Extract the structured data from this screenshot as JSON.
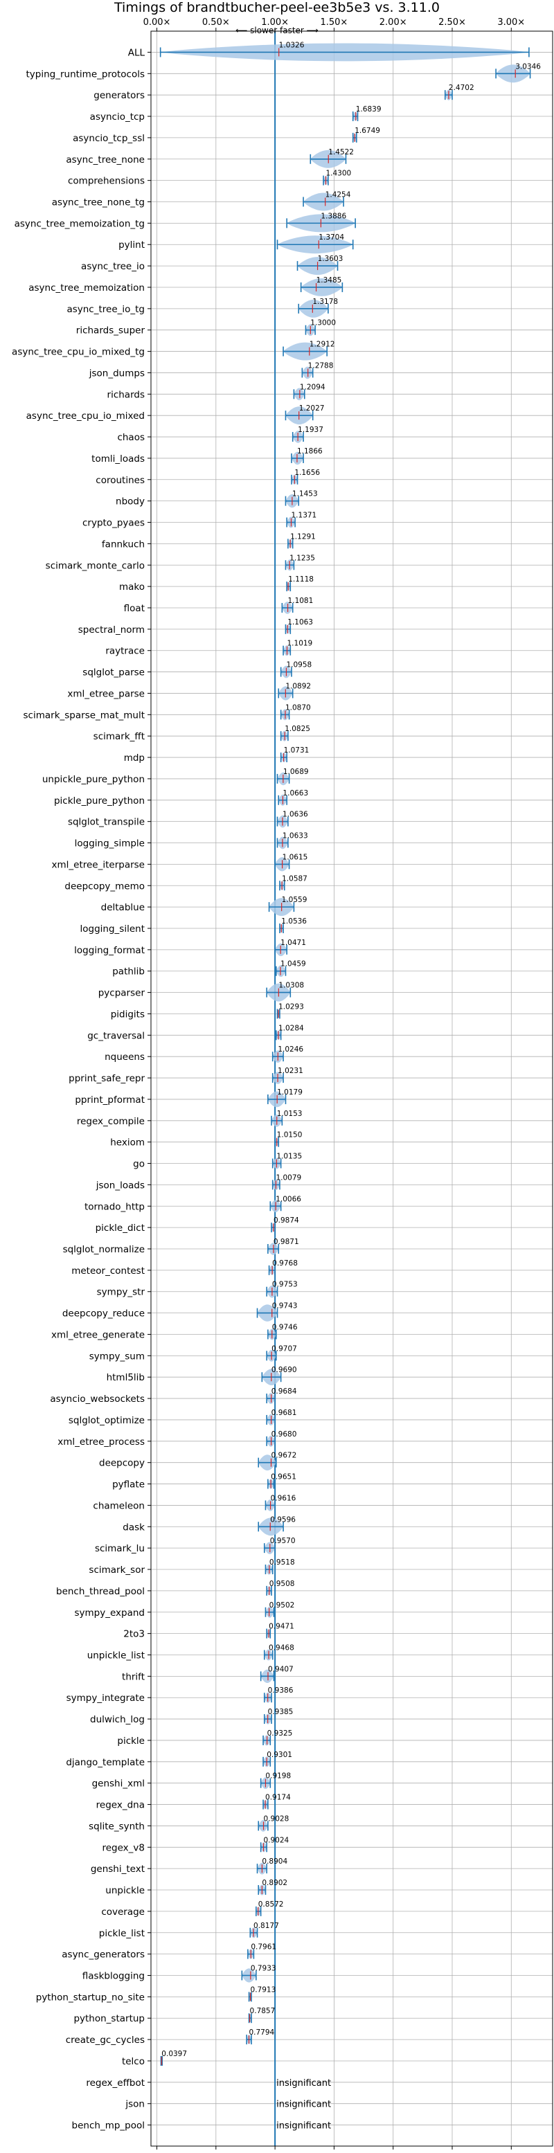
{
  "chart_data": {
    "type": "violin",
    "title": "Timings of brandtbucher-peel-ee3b5e3 vs. 3.11.0",
    "annotation": "⟵ slower    faster ⟶",
    "xlim": [
      -0.05,
      3.35
    ],
    "xticks": [
      "0.00×",
      "0.50×",
      "1.00×",
      "1.50×",
      "2.00×",
      "2.50×",
      "3.00×"
    ],
    "xtick_values": [
      0,
      0.5,
      1,
      1.5,
      2,
      2.5,
      3
    ],
    "reference_line": 1.0,
    "grid": true,
    "benchmarks": [
      {
        "name": "ALL",
        "label": "1.0326",
        "value": 1.0326,
        "min": 0.03,
        "max": 3.15
      },
      {
        "name": "typing_runtime_protocols",
        "label": "3.0346",
        "value": 3.0346,
        "min": 2.87,
        "max": 3.16
      },
      {
        "name": "generators",
        "label": "2.4702",
        "value": 2.4702,
        "min": 2.44,
        "max": 2.5
      },
      {
        "name": "asyncio_tcp",
        "label": "1.6839",
        "value": 1.6839,
        "min": 1.66,
        "max": 1.7
      },
      {
        "name": "asyncio_tcp_ssl",
        "label": "1.6749",
        "value": 1.6749,
        "min": 1.66,
        "max": 1.69
      },
      {
        "name": "async_tree_none",
        "label": "1.4522",
        "value": 1.4522,
        "min": 1.3,
        "max": 1.6
      },
      {
        "name": "comprehensions",
        "label": "1.4300",
        "value": 1.43,
        "min": 1.41,
        "max": 1.45
      },
      {
        "name": "async_tree_none_tg",
        "label": "1.4254",
        "value": 1.4254,
        "min": 1.24,
        "max": 1.58
      },
      {
        "name": "async_tree_memoization_tg",
        "label": "1.3886",
        "value": 1.3886,
        "min": 1.1,
        "max": 1.68
      },
      {
        "name": "pylint",
        "label": "1.3704",
        "value": 1.3704,
        "min": 1.02,
        "max": 1.66
      },
      {
        "name": "async_tree_io",
        "label": "1.3603",
        "value": 1.3603,
        "min": 1.19,
        "max": 1.53
      },
      {
        "name": "async_tree_memoization",
        "label": "1.3485",
        "value": 1.3485,
        "min": 1.22,
        "max": 1.57
      },
      {
        "name": "async_tree_io_tg",
        "label": "1.3178",
        "value": 1.3178,
        "min": 1.2,
        "max": 1.45
      },
      {
        "name": "richards_super",
        "label": "1.3000",
        "value": 1.3,
        "min": 1.26,
        "max": 1.34
      },
      {
        "name": "async_tree_cpu_io_mixed_tg",
        "label": "1.2912",
        "value": 1.2912,
        "min": 1.07,
        "max": 1.44
      },
      {
        "name": "json_dumps",
        "label": "1.2788",
        "value": 1.2788,
        "min": 1.23,
        "max": 1.32
      },
      {
        "name": "richards",
        "label": "1.2094",
        "value": 1.2094,
        "min": 1.16,
        "max": 1.25
      },
      {
        "name": "async_tree_cpu_io_mixed",
        "label": "1.2027",
        "value": 1.2027,
        "min": 1.09,
        "max": 1.32
      },
      {
        "name": "chaos",
        "label": "1.1937",
        "value": 1.1937,
        "min": 1.15,
        "max": 1.24
      },
      {
        "name": "tomli_loads",
        "label": "1.1866",
        "value": 1.1866,
        "min": 1.14,
        "max": 1.24
      },
      {
        "name": "coroutines",
        "label": "1.1656",
        "value": 1.1656,
        "min": 1.14,
        "max": 1.19
      },
      {
        "name": "nbody",
        "label": "1.1453",
        "value": 1.1453,
        "min": 1.09,
        "max": 1.2
      },
      {
        "name": "crypto_pyaes",
        "label": "1.1371",
        "value": 1.1371,
        "min": 1.1,
        "max": 1.17
      },
      {
        "name": "fannkuch",
        "label": "1.1291",
        "value": 1.1291,
        "min": 1.11,
        "max": 1.15
      },
      {
        "name": "scimark_monte_carlo",
        "label": "1.1235",
        "value": 1.1235,
        "min": 1.09,
        "max": 1.16
      },
      {
        "name": "mako",
        "label": "1.1118",
        "value": 1.1118,
        "min": 1.1,
        "max": 1.13
      },
      {
        "name": "float",
        "label": "1.1081",
        "value": 1.1081,
        "min": 1.06,
        "max": 1.15
      },
      {
        "name": "spectral_norm",
        "label": "1.1063",
        "value": 1.1063,
        "min": 1.09,
        "max": 1.13
      },
      {
        "name": "raytrace",
        "label": "1.1019",
        "value": 1.1019,
        "min": 1.07,
        "max": 1.13
      },
      {
        "name": "sqlglot_parse",
        "label": "1.0958",
        "value": 1.0958,
        "min": 1.05,
        "max": 1.14
      },
      {
        "name": "xml_etree_parse",
        "label": "1.0892",
        "value": 1.0892,
        "min": 1.03,
        "max": 1.15
      },
      {
        "name": "scimark_sparse_mat_mult",
        "label": "1.0870",
        "value": 1.087,
        "min": 1.05,
        "max": 1.12
      },
      {
        "name": "scimark_fft",
        "label": "1.0825",
        "value": 1.0825,
        "min": 1.05,
        "max": 1.11
      },
      {
        "name": "mdp",
        "label": "1.0731",
        "value": 1.0731,
        "min": 1.05,
        "max": 1.1
      },
      {
        "name": "unpickle_pure_python",
        "label": "1.0689",
        "value": 1.0689,
        "min": 1.02,
        "max": 1.12
      },
      {
        "name": "pickle_pure_python",
        "label": "1.0663",
        "value": 1.0663,
        "min": 1.03,
        "max": 1.1
      },
      {
        "name": "sqlglot_transpile",
        "label": "1.0636",
        "value": 1.0636,
        "min": 1.02,
        "max": 1.11
      },
      {
        "name": "logging_simple",
        "label": "1.0633",
        "value": 1.0633,
        "min": 1.02,
        "max": 1.11
      },
      {
        "name": "xml_etree_iterparse",
        "label": "1.0615",
        "value": 1.0615,
        "min": 1.0,
        "max": 1.12
      },
      {
        "name": "deepcopy_memo",
        "label": "1.0587",
        "value": 1.0587,
        "min": 1.04,
        "max": 1.08
      },
      {
        "name": "deltablue",
        "label": "1.0559",
        "value": 1.0559,
        "min": 0.95,
        "max": 1.16
      },
      {
        "name": "logging_silent",
        "label": "1.0536",
        "value": 1.0536,
        "min": 1.04,
        "max": 1.07
      },
      {
        "name": "logging_format",
        "label": "1.0471",
        "value": 1.0471,
        "min": 1.0,
        "max": 1.1
      },
      {
        "name": "pathlib",
        "label": "1.0459",
        "value": 1.0459,
        "min": 1.01,
        "max": 1.09
      },
      {
        "name": "pycparser",
        "label": "1.0308",
        "value": 1.0308,
        "min": 0.93,
        "max": 1.13
      },
      {
        "name": "pidigits",
        "label": "1.0293",
        "value": 1.0293,
        "min": 1.02,
        "max": 1.04
      },
      {
        "name": "gc_traversal",
        "label": "1.0284",
        "value": 1.0284,
        "min": 1.01,
        "max": 1.05
      },
      {
        "name": "nqueens",
        "label": "1.0246",
        "value": 1.0246,
        "min": 0.98,
        "max": 1.07
      },
      {
        "name": "pprint_safe_repr",
        "label": "1.0231",
        "value": 1.0231,
        "min": 0.98,
        "max": 1.07
      },
      {
        "name": "pprint_pformat",
        "label": "1.0179",
        "value": 1.0179,
        "min": 0.94,
        "max": 1.09
      },
      {
        "name": "regex_compile",
        "label": "1.0153",
        "value": 1.0153,
        "min": 0.97,
        "max": 1.06
      },
      {
        "name": "hexiom",
        "label": "1.0150",
        "value": 1.015,
        "min": 1.0,
        "max": 1.03
      },
      {
        "name": "go",
        "label": "1.0135",
        "value": 1.0135,
        "min": 0.98,
        "max": 1.05
      },
      {
        "name": "json_loads",
        "label": "1.0079",
        "value": 1.0079,
        "min": 0.98,
        "max": 1.04
      },
      {
        "name": "tornado_http",
        "label": "1.0066",
        "value": 1.0066,
        "min": 0.96,
        "max": 1.05
      },
      {
        "name": "pickle_dict",
        "label": "0.9874",
        "value": 0.9874,
        "min": 0.97,
        "max": 1.0
      },
      {
        "name": "sqlglot_normalize",
        "label": "0.9871",
        "value": 0.9871,
        "min": 0.94,
        "max": 1.03
      },
      {
        "name": "meteor_contest",
        "label": "0.9768",
        "value": 0.9768,
        "min": 0.95,
        "max": 1.0
      },
      {
        "name": "sympy_str",
        "label": "0.9753",
        "value": 0.9753,
        "min": 0.93,
        "max": 1.02
      },
      {
        "name": "deepcopy_reduce",
        "label": "0.9743",
        "value": 0.9743,
        "min": 0.85,
        "max": 1.02
      },
      {
        "name": "xml_etree_generate",
        "label": "0.9746",
        "value": 0.9746,
        "min": 0.94,
        "max": 1.01
      },
      {
        "name": "sympy_sum",
        "label": "0.9707",
        "value": 0.9707,
        "min": 0.93,
        "max": 1.01
      },
      {
        "name": "html5lib",
        "label": "0.9690",
        "value": 0.969,
        "min": 0.89,
        "max": 1.05
      },
      {
        "name": "asyncio_websockets",
        "label": "0.9684",
        "value": 0.9684,
        "min": 0.93,
        "max": 1.0
      },
      {
        "name": "sqlglot_optimize",
        "label": "0.9681",
        "value": 0.9681,
        "min": 0.93,
        "max": 1.0
      },
      {
        "name": "xml_etree_process",
        "label": "0.9680",
        "value": 0.968,
        "min": 0.93,
        "max": 1.0
      },
      {
        "name": "deepcopy",
        "label": "0.9672",
        "value": 0.9672,
        "min": 0.86,
        "max": 1.01
      },
      {
        "name": "pyflate",
        "label": "0.9651",
        "value": 0.9651,
        "min": 0.94,
        "max": 0.99
      },
      {
        "name": "chameleon",
        "label": "0.9616",
        "value": 0.9616,
        "min": 0.92,
        "max": 1.0
      },
      {
        "name": "dask",
        "label": "0.9596",
        "value": 0.9596,
        "min": 0.86,
        "max": 1.07
      },
      {
        "name": "scimark_lu",
        "label": "0.9570",
        "value": 0.957,
        "min": 0.91,
        "max": 1.0
      },
      {
        "name": "scimark_sor",
        "label": "0.9518",
        "value": 0.9518,
        "min": 0.92,
        "max": 0.98
      },
      {
        "name": "bench_thread_pool",
        "label": "0.9508",
        "value": 0.9508,
        "min": 0.93,
        "max": 0.97
      },
      {
        "name": "sympy_expand",
        "label": "0.9502",
        "value": 0.9502,
        "min": 0.92,
        "max": 0.99
      },
      {
        "name": "2to3",
        "label": "0.9471",
        "value": 0.9471,
        "min": 0.93,
        "max": 0.96
      },
      {
        "name": "unpickle_list",
        "label": "0.9468",
        "value": 0.9468,
        "min": 0.91,
        "max": 0.98
      },
      {
        "name": "thrift",
        "label": "0.9407",
        "value": 0.9407,
        "min": 0.88,
        "max": 0.99
      },
      {
        "name": "sympy_integrate",
        "label": "0.9386",
        "value": 0.9386,
        "min": 0.91,
        "max": 0.97
      },
      {
        "name": "dulwich_log",
        "label": "0.9385",
        "value": 0.9385,
        "min": 0.91,
        "max": 0.97
      },
      {
        "name": "pickle",
        "label": "0.9325",
        "value": 0.9325,
        "min": 0.9,
        "max": 0.96
      },
      {
        "name": "django_template",
        "label": "0.9301",
        "value": 0.9301,
        "min": 0.9,
        "max": 0.96
      },
      {
        "name": "genshi_xml",
        "label": "0.9198",
        "value": 0.9198,
        "min": 0.88,
        "max": 0.96
      },
      {
        "name": "regex_dna",
        "label": "0.9174",
        "value": 0.9174,
        "min": 0.9,
        "max": 0.94
      },
      {
        "name": "sqlite_synth",
        "label": "0.9028",
        "value": 0.9028,
        "min": 0.86,
        "max": 0.94
      },
      {
        "name": "regex_v8",
        "label": "0.9024",
        "value": 0.9024,
        "min": 0.88,
        "max": 0.93
      },
      {
        "name": "genshi_text",
        "label": "0.8904",
        "value": 0.8904,
        "min": 0.85,
        "max": 0.93
      },
      {
        "name": "unpickle",
        "label": "0.8902",
        "value": 0.8902,
        "min": 0.86,
        "max": 0.92
      },
      {
        "name": "coverage",
        "label": "0.8572",
        "value": 0.8572,
        "min": 0.84,
        "max": 0.88
      },
      {
        "name": "pickle_list",
        "label": "0.8177",
        "value": 0.8177,
        "min": 0.79,
        "max": 0.85
      },
      {
        "name": "async_generators",
        "label": "0.7961",
        "value": 0.7961,
        "min": 0.77,
        "max": 0.82
      },
      {
        "name": "flaskblogging",
        "label": "0.7933",
        "value": 0.7933,
        "min": 0.72,
        "max": 0.84
      },
      {
        "name": "python_startup_no_site",
        "label": "0.7913",
        "value": 0.7913,
        "min": 0.78,
        "max": 0.8
      },
      {
        "name": "python_startup",
        "label": "0.7857",
        "value": 0.7857,
        "min": 0.78,
        "max": 0.8
      },
      {
        "name": "create_gc_cycles",
        "label": "0.7794",
        "value": 0.7794,
        "min": 0.76,
        "max": 0.8
      },
      {
        "name": "telco",
        "label": "0.0397",
        "value": 0.0397,
        "min": 0.035,
        "max": 0.045
      },
      {
        "name": "regex_effbot",
        "label": "insignificant",
        "value": null
      },
      {
        "name": "json",
        "label": "insignificant",
        "value": null
      },
      {
        "name": "bench_mp_pool",
        "label": "insignificant",
        "value": null
      }
    ]
  },
  "colors": {
    "violin": "#a9c8e6",
    "line": "#1f77b4",
    "median": "#d62728",
    "grid": "#b0b0b0",
    "reference": "#1f77b4"
  }
}
